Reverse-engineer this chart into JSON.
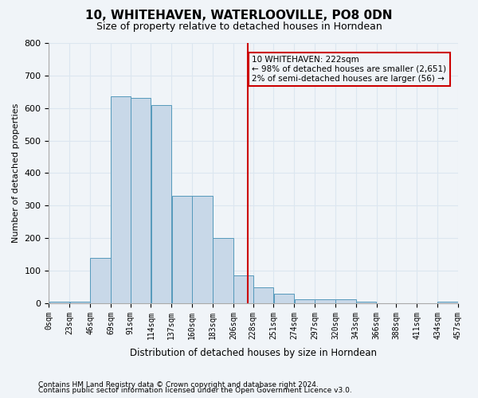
{
  "title": "10, WHITEHAVEN, WATERLOOVILLE, PO8 0DN",
  "subtitle": "Size of property relative to detached houses in Horndean",
  "xlabel": "Distribution of detached houses by size in Horndean",
  "ylabel": "Number of detached properties",
  "bar_color": "#c8d8e8",
  "bar_edge_color": "#5599bb",
  "grid_color": "#dce6f0",
  "annotation_box_color": "#cc0000",
  "vline_color": "#cc0000",
  "property_size": 222,
  "bins": [
    0,
    23,
    46,
    69,
    91,
    114,
    137,
    160,
    183,
    206,
    228,
    251,
    274,
    297,
    320,
    343,
    366,
    388,
    411,
    434,
    457
  ],
  "bin_labels": [
    "0sqm",
    "23sqm",
    "46sqm",
    "69sqm",
    "91sqm",
    "114sqm",
    "137sqm",
    "160sqm",
    "183sqm",
    "206sqm",
    "228sqm",
    "251sqm",
    "274sqm",
    "297sqm",
    "320sqm",
    "343sqm",
    "366sqm",
    "388sqm",
    "411sqm",
    "434sqm",
    "457sqm"
  ],
  "counts": [
    5,
    5,
    140,
    635,
    630,
    610,
    330,
    330,
    200,
    85,
    48,
    28,
    12,
    13,
    11,
    5,
    0,
    0,
    0,
    5
  ],
  "annotation_text": "10 WHITEHAVEN: 222sqm\n← 98% of detached houses are smaller (2,651)\n2% of semi-detached houses are larger (56) →",
  "footnote1": "Contains HM Land Registry data © Crown copyright and database right 2024.",
  "footnote2": "Contains public sector information licensed under the Open Government Licence v3.0.",
  "ylim": [
    0,
    800
  ],
  "yticks": [
    0,
    100,
    200,
    300,
    400,
    500,
    600,
    700,
    800
  ],
  "background_color": "#f0f4f8"
}
